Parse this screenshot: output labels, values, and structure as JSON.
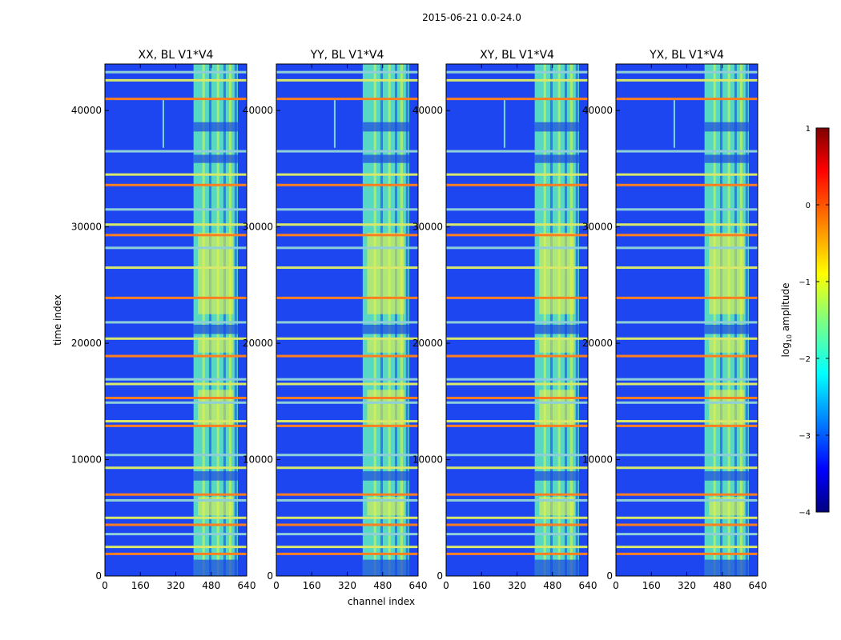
{
  "suptitle": "2015-06-21 0.0-24.0",
  "chart_data": {
    "type": "heatmap",
    "title": "2015-06-21 0.0-24.0",
    "xlabel": "channel index",
    "ylabel": "time index",
    "xlim": [
      0,
      640
    ],
    "ylim": [
      0,
      44000
    ],
    "xticks": [
      0,
      160,
      320,
      480,
      640
    ],
    "yticks": [
      0,
      10000,
      20000,
      30000,
      40000
    ],
    "panels": [
      {
        "title": "XX, BL V1*V4",
        "band": [
          400,
          600
        ],
        "faint_line_channel": 260
      },
      {
        "title": "YY, BL V1*V4",
        "band": [
          390,
          600
        ],
        "faint_line_channel": 260
      },
      {
        "title": "XY, BL V1*V4",
        "band": [
          400,
          600
        ],
        "faint_line_channel": 260
      },
      {
        "title": "YX, BL V1*V4",
        "band": [
          400,
          600
        ],
        "faint_line_channel": 260
      }
    ],
    "flagged_time_rows": [
      1900,
      2500,
      3600,
      4400,
      5000,
      6500,
      7000,
      9300,
      10400,
      12900,
      13300,
      14900,
      15300,
      16500,
      16900,
      18900,
      20400,
      21800,
      23900,
      26500,
      28200,
      29300,
      30200,
      31500,
      33600,
      34500,
      36500,
      41000,
      42600,
      43300
    ],
    "colorbar": {
      "label": "log",
      "label_sub": "10",
      "label_suffix": " amplitude",
      "range": [
        -4,
        1
      ],
      "ticks": [
        1,
        0,
        -1,
        -2,
        -3,
        -4
      ],
      "tick_labels": [
        "1",
        "0",
        "−1",
        "−2",
        "−3",
        "−4"
      ],
      "colormap": "jet"
    }
  }
}
